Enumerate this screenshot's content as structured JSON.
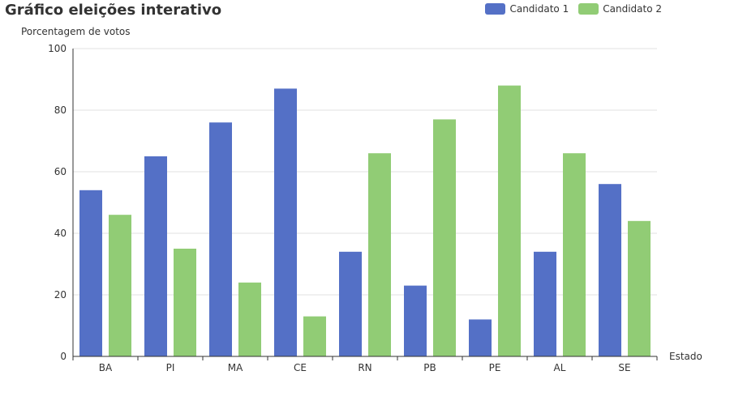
{
  "chart_data": {
    "type": "bar",
    "title": "Gráfico eleições interativo",
    "xlabel": "Estado",
    "ylabel": "Porcentagem de votos",
    "categories": [
      "BA",
      "PI",
      "MA",
      "CE",
      "RN",
      "PB",
      "PE",
      "AL",
      "SE"
    ],
    "series": [
      {
        "name": "Candidato 1",
        "color": "#5470c6",
        "values": [
          54,
          65,
          76,
          87,
          34,
          23,
          12,
          34,
          56
        ]
      },
      {
        "name": "Candidato 2",
        "color": "#91cc75",
        "values": [
          46,
          35,
          24,
          13,
          66,
          77,
          88,
          66,
          44
        ]
      }
    ],
    "ylim": [
      0,
      100
    ],
    "yticks": [
      0,
      20,
      40,
      60,
      80,
      100
    ],
    "grid": true,
    "legend_position": "top-right"
  }
}
